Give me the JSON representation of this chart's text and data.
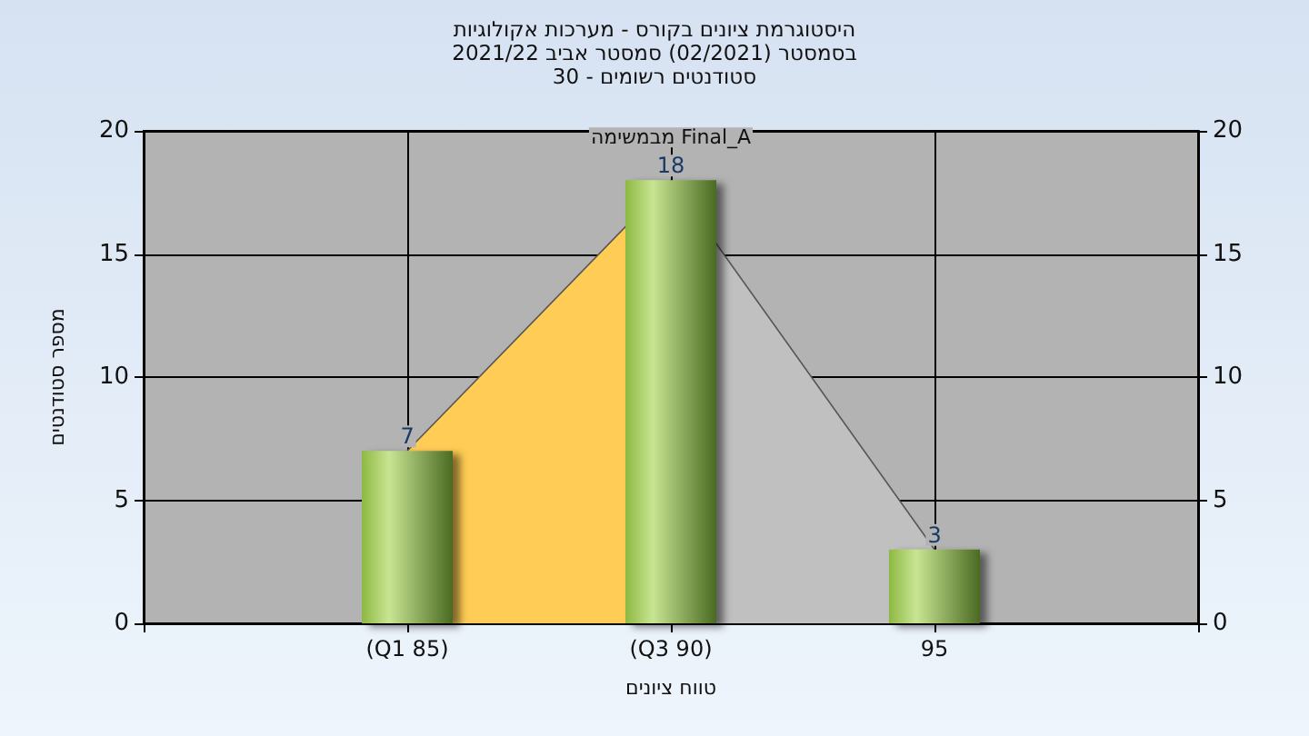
{
  "chart_data": {
    "type": "bar",
    "title": "היסטוגרמת ציונים בקורס - מערכות אקולוגיות",
    "subtitle": "בסמסטר (02/2021) סמסטר אביב 2021/22\nסטודנטים רשומים - 30",
    "xlabel": "טווח ציונים",
    "ylabel": "מספר סטודנטים",
    "categories": [
      null,
      "(Q1 85)",
      "(Q3 90)",
      "95",
      null
    ],
    "series": [
      {
        "type": "area",
        "color": "#ffcc55",
        "values": [
          null,
          7,
          18,
          null,
          null
        ]
      },
      {
        "type": "area",
        "color": "#c0c0c0",
        "values": [
          null,
          null,
          18,
          3,
          null
        ]
      },
      {
        "color": "#8db843",
        "values": [
          null,
          7,
          18,
          3,
          null
        ],
        "value_labels": [
          null,
          "7",
          "18",
          "3",
          null
        ]
      }
    ],
    "annotations": [
      {
        "text": "מבמשימה Final_A",
        "x": "(Q3 90)",
        "y": 18
      }
    ],
    "ylim": [
      0,
      20
    ],
    "yticks": [
      0,
      5,
      10,
      15,
      20
    ],
    "y2lim": [
      0,
      20
    ],
    "y2ticks": [
      0,
      5,
      10,
      15,
      20
    ],
    "grid": true
  }
}
